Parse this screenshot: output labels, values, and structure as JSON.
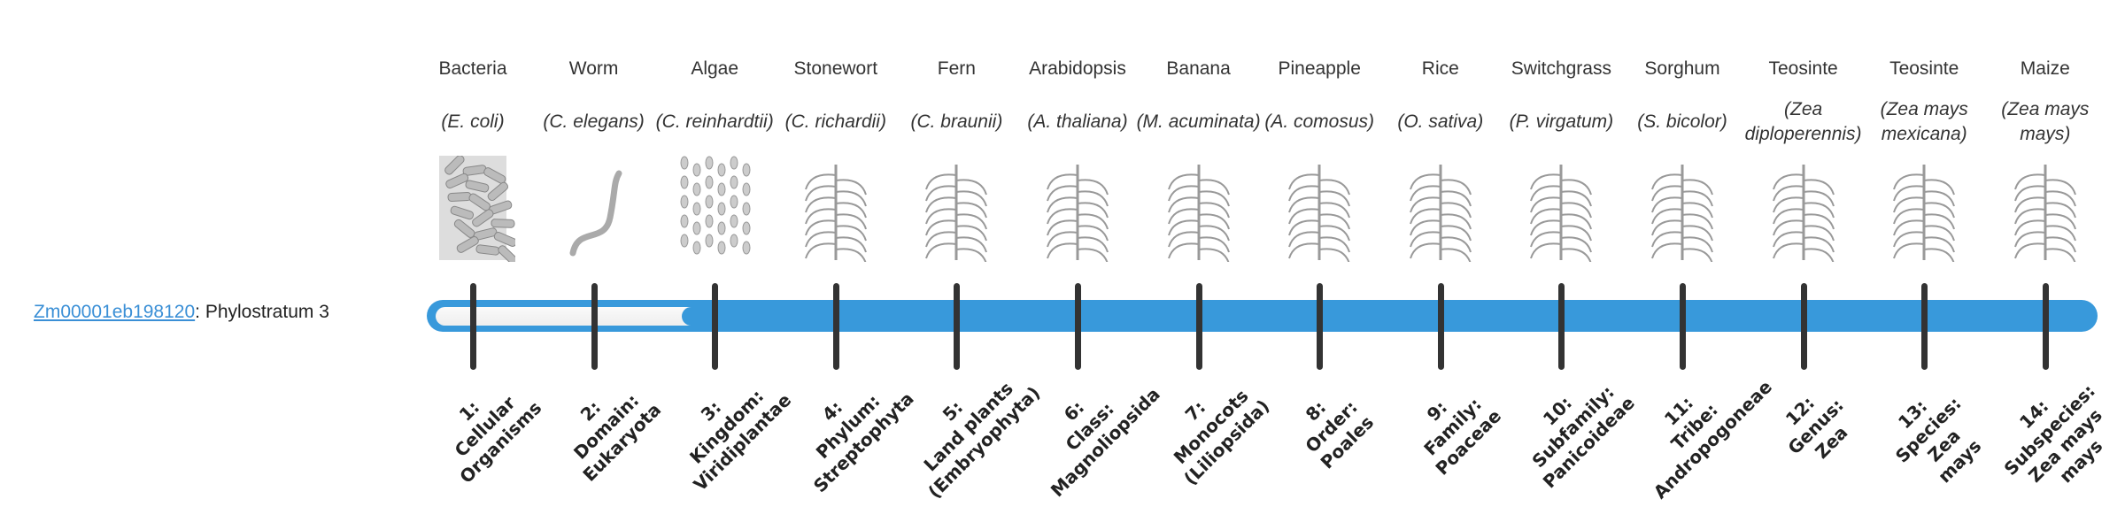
{
  "gene": {
    "id": "Zm00001eb198120",
    "suffix": ": Phylostratum 3"
  },
  "colors": {
    "bar": "#3899db",
    "tick": "#333333",
    "link": "#3a8fd6"
  },
  "phylostratum": 3,
  "strata": [
    {
      "name": "Bacteria",
      "sci": "(E. coli)",
      "icon": "bacteria-image",
      "rank": [
        "1:",
        "Cellular",
        "Organisms"
      ]
    },
    {
      "name": "Worm",
      "sci": "(C. elegans)",
      "icon": "worm-image",
      "rank": [
        "2:",
        "Domain:",
        "Eukaryota"
      ]
    },
    {
      "name": "Algae",
      "sci": "(C. reinhardtii)",
      "icon": "algae-image",
      "rank": [
        "3:",
        "Kingdom:",
        "Viridiplantae"
      ]
    },
    {
      "name": "Stonewort",
      "sci": "(C. richardii)",
      "icon": "stonewort-image",
      "rank": [
        "4:",
        "Phylum:",
        "Streptophyta"
      ]
    },
    {
      "name": "Fern",
      "sci": "(C. braunii)",
      "icon": "fern-image",
      "rank": [
        "5:",
        "Land plants",
        "(Embryophyta)"
      ]
    },
    {
      "name": "Arabidopsis",
      "sci": "(A. thaliana)",
      "icon": "arabidopsis-image",
      "rank": [
        "6:",
        "Class:",
        "Magnoliopsida"
      ]
    },
    {
      "name": "Banana",
      "sci": "(M. acuminata)",
      "icon": "banana-image",
      "rank": [
        "7:",
        "Monocots",
        "(Liliopsida)"
      ]
    },
    {
      "name": "Pineapple",
      "sci": "(A. comosus)",
      "icon": "pineapple-image",
      "rank": [
        "8:",
        "Order:",
        "Poales"
      ]
    },
    {
      "name": "Rice",
      "sci": "(O. sativa)",
      "icon": "rice-image",
      "rank": [
        "9:",
        "Family:",
        "Poaceae"
      ]
    },
    {
      "name": "Switchgrass",
      "sci": "(P. virgatum)",
      "icon": "switchgrass-image",
      "rank": [
        "10:",
        "Subfamily:",
        "Panicoideae"
      ]
    },
    {
      "name": "Sorghum",
      "sci": "(S. bicolor)",
      "icon": "sorghum-image",
      "rank": [
        "11:",
        "Tribe:",
        "Andropogoneae"
      ]
    },
    {
      "name": "Teosinte",
      "sci": "(Zea diploperennis)",
      "icon": "teosinte-image",
      "rank": [
        "12:",
        "Genus:",
        "Zea"
      ]
    },
    {
      "name": "Teosinte",
      "sci": "(Zea mays mexicana)",
      "icon": "teosinte-mexicana-image",
      "rank": [
        "13:",
        "Species:",
        "Zea",
        "mays"
      ]
    },
    {
      "name": "Maize",
      "sci": "(Zea mays mays)",
      "icon": "maize-image",
      "rank": [
        "14:",
        "Subspecies:",
        "Zea mays",
        "mays"
      ]
    }
  ]
}
